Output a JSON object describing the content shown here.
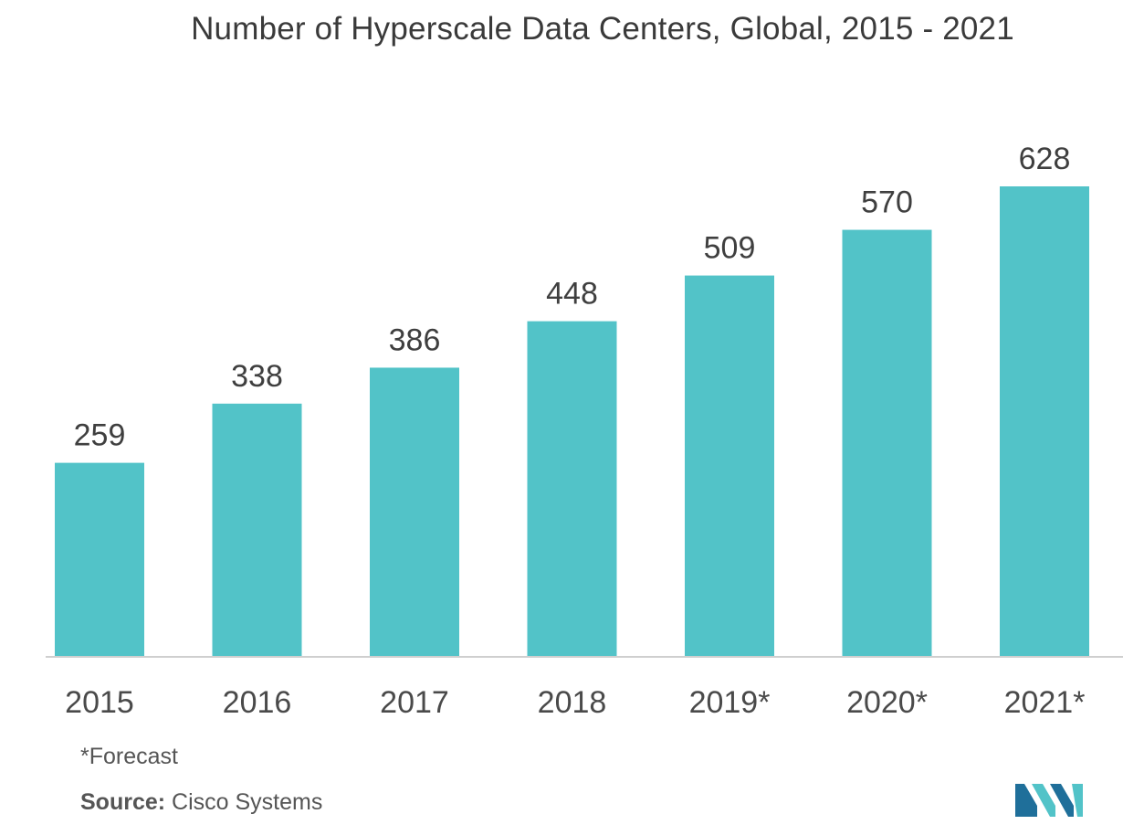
{
  "title": "Number of Hyperscale Data Centers, Global, 2015 - 2021",
  "note": "*Forecast",
  "source": {
    "label": "Source:",
    "value": "Cisco Systems"
  },
  "colors": {
    "bar": "#52c3c8",
    "logo_dark": "#1f6f9a",
    "logo_light": "#52c3c8"
  },
  "logo_icon": "company-logo-icon",
  "chart_data": {
    "type": "bar",
    "title": "Number of Hyperscale Data Centers, Global, 2015 - 2021",
    "categories": [
      "2015",
      "2016",
      "2017",
      "2018",
      "2019*",
      "2020*",
      "2021*"
    ],
    "values": [
      259,
      338,
      386,
      448,
      509,
      570,
      628
    ],
    "data_labels": [
      "259",
      "338",
      "386",
      "448",
      "509",
      "570",
      "628"
    ],
    "xlabel": "",
    "ylabel": "",
    "ylim": [
      0,
      700
    ],
    "grid": false,
    "legend": "none"
  }
}
